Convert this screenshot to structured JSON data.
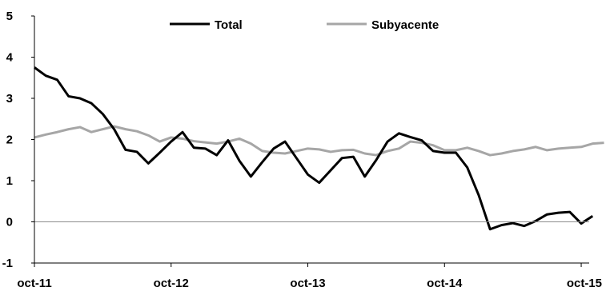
{
  "chart_data": {
    "type": "line",
    "x_tick_labels": [
      "oct-11",
      "oct-12",
      "oct-13",
      "oct-14",
      "oct-15"
    ],
    "x_tick_months": [
      0,
      12,
      24,
      36,
      48
    ],
    "ylim": [
      -1,
      5
    ],
    "yticks": [
      -1,
      0,
      1,
      2,
      3,
      4,
      5
    ],
    "ytick_labels": [
      "-1",
      "0",
      "1",
      "2",
      "3",
      "4",
      "5"
    ],
    "xlim": [
      0,
      48.7
    ],
    "legend_position": "top",
    "gridlines": false,
    "series": [
      {
        "name": "Total",
        "color": "#000000",
        "values": [
          3.75,
          3.55,
          3.45,
          3.05,
          3.0,
          2.88,
          2.62,
          2.25,
          1.75,
          1.7,
          1.42,
          1.68,
          1.95,
          2.18,
          1.8,
          1.78,
          1.62,
          1.98,
          1.48,
          1.1,
          1.45,
          1.78,
          1.95,
          1.55,
          1.15,
          0.95,
          1.25,
          1.55,
          1.58,
          1.1,
          1.5,
          1.95,
          2.15,
          2.06,
          1.98,
          1.72,
          1.68,
          1.68,
          1.32,
          0.65,
          -0.18,
          -0.08,
          -0.03,
          -0.1,
          0.02,
          0.18,
          0.22,
          0.24,
          -0.04,
          0.14
        ]
      },
      {
        "name": "Subyacente",
        "color": "#a6a6a6",
        "values": [
          2.05,
          2.12,
          2.18,
          2.25,
          2.3,
          2.18,
          2.25,
          2.32,
          2.25,
          2.2,
          2.1,
          1.95,
          2.05,
          2.02,
          1.96,
          1.93,
          1.9,
          1.95,
          2.02,
          1.9,
          1.72,
          1.68,
          1.66,
          1.72,
          1.78,
          1.76,
          1.7,
          1.74,
          1.75,
          1.66,
          1.62,
          1.72,
          1.78,
          1.95,
          1.92,
          1.86,
          1.74,
          1.74,
          1.8,
          1.72,
          1.62,
          1.66,
          1.72,
          1.76,
          1.82,
          1.74,
          1.78,
          1.8,
          1.82,
          1.9,
          1.92
        ]
      }
    ]
  }
}
